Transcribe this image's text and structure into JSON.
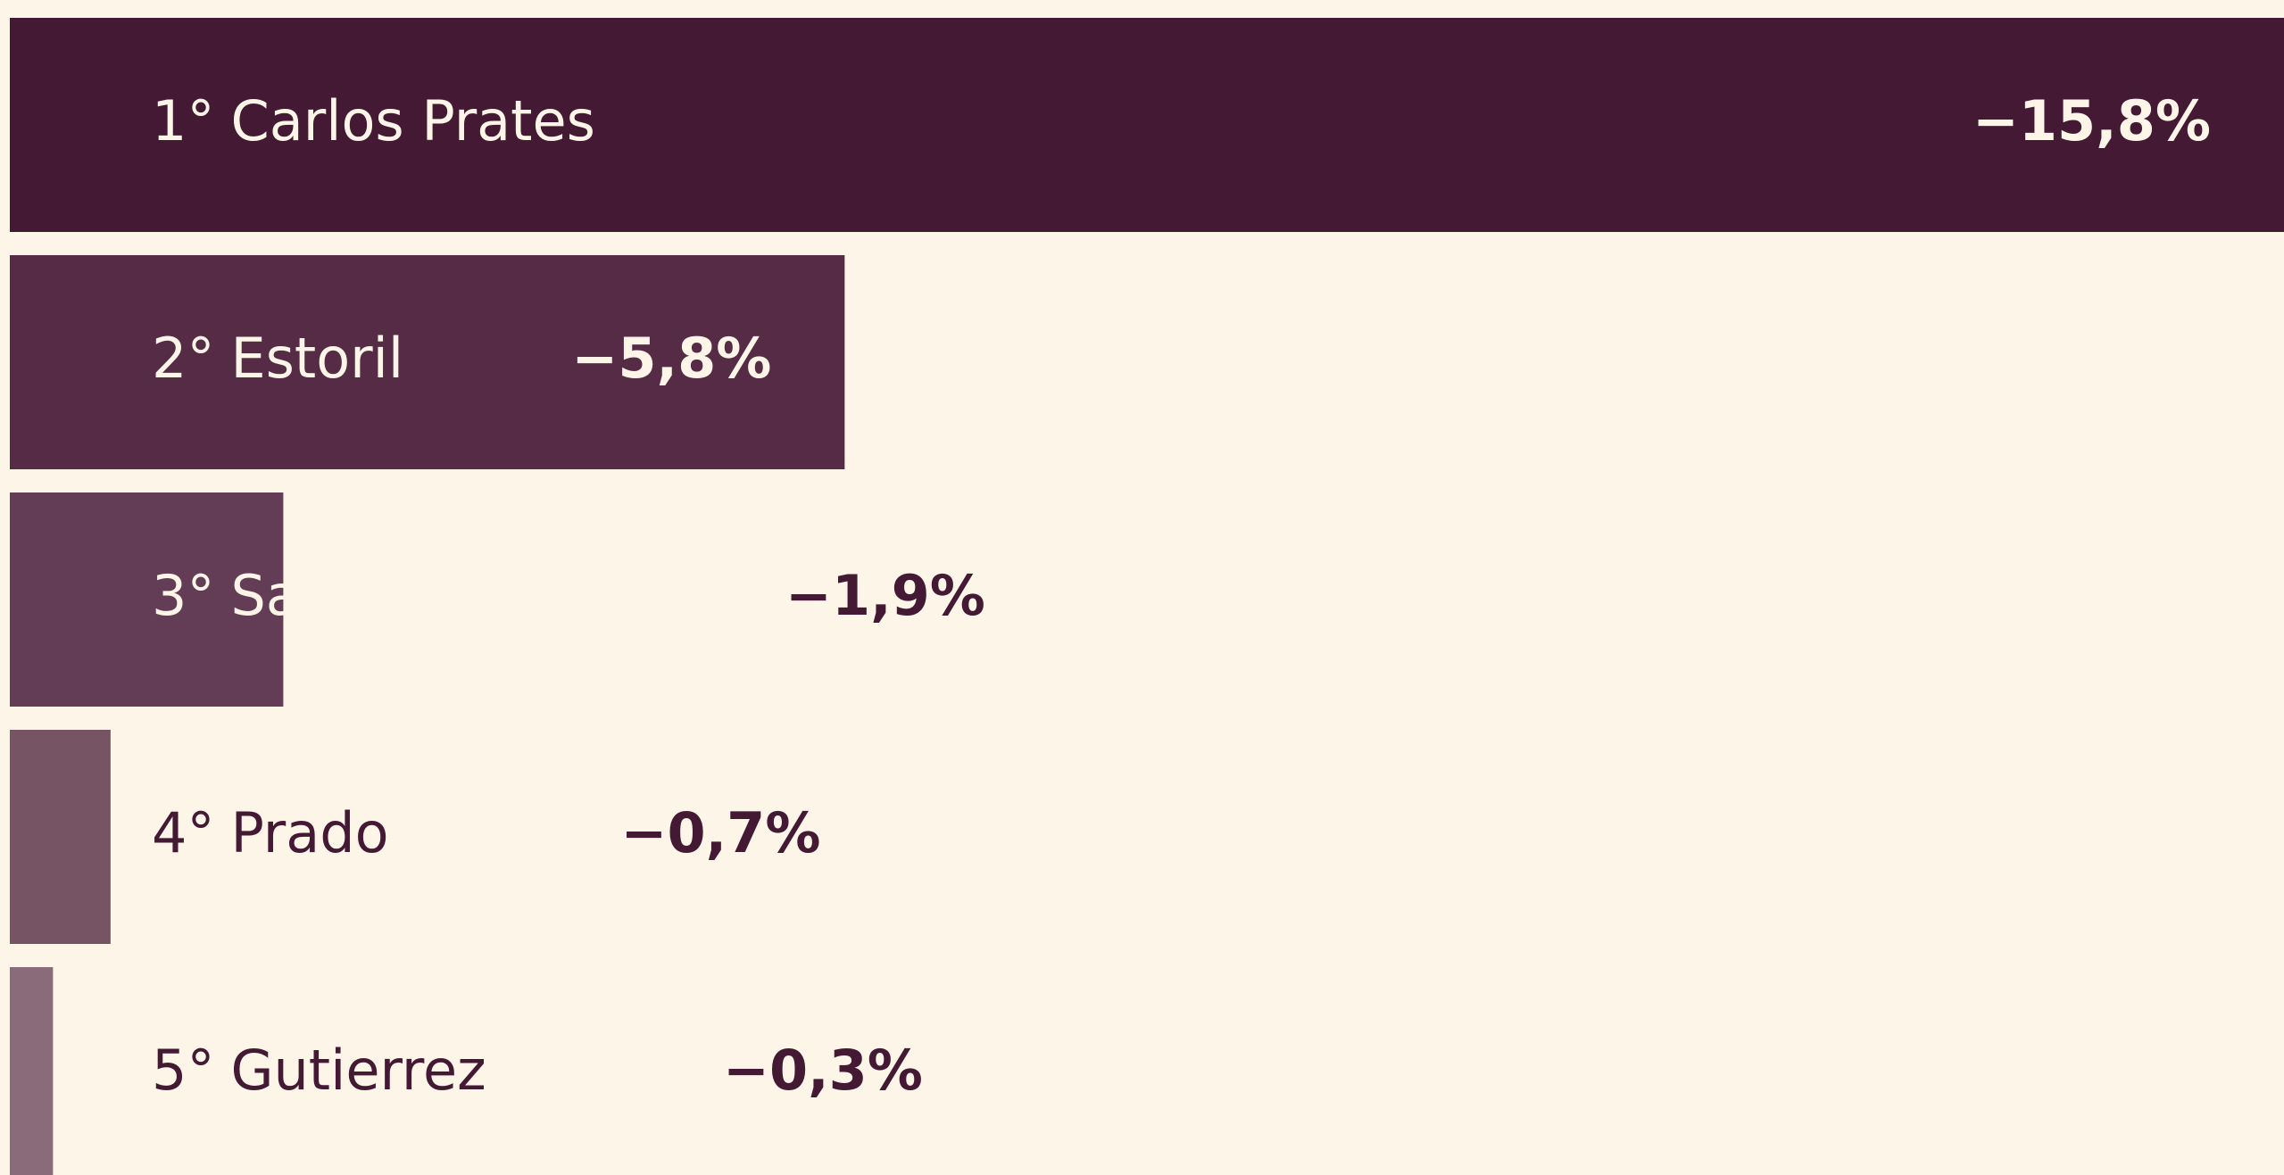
{
  "chart_data": {
    "type": "bar",
    "orientation": "horizontal",
    "ranks": [
      "1°",
      "2°",
      "3°",
      "4°",
      "5°"
    ],
    "categories": [
      "Carlos Prates",
      "Estoril",
      "Santo Agostinho",
      "Prado",
      "Gutierrez"
    ],
    "values": [
      -15.8,
      -5.8,
      -1.9,
      -0.7,
      -0.3
    ],
    "value_labels": [
      "−15,8%",
      "−5,8%",
      "−1,9%",
      "−0,7%",
      "−0,3%"
    ],
    "colors": [
      "#431933",
      "#552b45",
      "#633c55",
      "#765464",
      "#8a6b7a"
    ],
    "xlim": [
      0,
      -15.8
    ]
  }
}
